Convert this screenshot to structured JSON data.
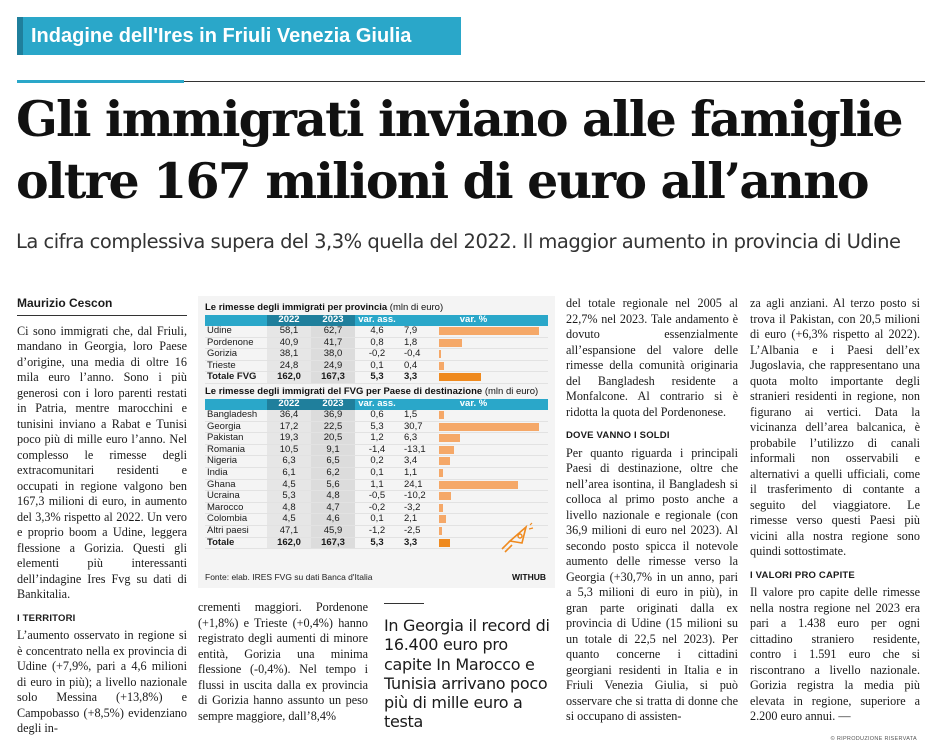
{
  "kicker": "Indagine dell'Ires in Friuli Venezia Giulia",
  "headline": {
    "line1": "Gli immigrati inviano alle famiglie",
    "line2": "oltre 167 milioni di euro all’anno"
  },
  "subtitle": "La cifra complessiva supera del 3,3% quella del 2022. Il maggior aumento in provincia di Udine",
  "byline": "Maurizio Cescon",
  "col1": {
    "p1": "Ci sono immigrati che, dal Friuli, mandano in Georgia, loro Paese d’origine, una media di oltre 16 mila euro l’anno. Sono i più generosi con i loro parenti restati in Patria, mentre marocchini e tunisini inviano a Rabat e Tunisi poco più di mille euro l’anno. Nel complesso le rimesse degli extracomunitari residenti e occupati in regione valgono ben 167,3 milioni di euro, in aumento del 3,3% rispetto al 2022. Un vero e proprio boom a Udine, leggera flessione a Gorizia. Questi gli elementi più interessanti dell’indagine Ires Fvg su dati di Bankitalia.",
    "section": "I TERRITORI",
    "p2": "L’aumento osservato in regione si è concentrato nella ex provincia di Udine (+7,9%, pari a 4,6 milioni di euro in più); a livello nazionale solo Messina (+13,8%) e Campobasso (+8,5%) evidenziano degli in-"
  },
  "col2_text": "crementi maggiori. Pordenone (+1,8%) e Trieste (+0,4%) hanno registrato degli aumenti di minore entità, Gorizia una minima flessione (-0,4%). Nel tempo i flussi in uscita dalla ex provincia di Gorizia hanno assunto un peso sempre maggiore, dall’8,4%",
  "quote": "In Georgia il record di 16.400 euro pro capite In Marocco e Tunisia arrivano poco più di mille euro a testa",
  "col3": {
    "p1": "del totale regionale nel 2005 al 22,7% nel 2023. Tale andamento è dovuto essenzialmente all’espansione del valore delle rimesse della comunità originaria del Bangladesh residente a Monfalcone. Al contrario si è ridotta la quota del Pordenonese.",
    "section": "DOVE VANNO I SOLDI",
    "p2": "Per quanto riguarda i principali Paesi di destinazione, oltre che nell’area isontina, il Bangladesh si colloca al primo posto anche a livello nazionale e regionale (con 36,9 milioni di euro nel 2023). Al secondo posto spicca il notevole aumento delle rimesse verso la Georgia (+30,7% in un anno, pari a 5,3 milioni di euro in più), in gran parte originati dalla ex provincia di Udine (15 milioni su un totale di 22,5 nel 2023). Per quanto concerne i cittadini georgiani residenti in Italia e in Friuli Venezia Giulia, si può osservare che si tratta di donne che si occupano di assisten-"
  },
  "col4": {
    "p1": "za agli anziani. Al terzo posto si trova il Pakistan, con 20,5 milioni di euro (+6,3% rispetto al 2022). L’Albania e i Paesi dell’ex Jugoslavia, che rappresentano una quota molto importante degli stranieri residenti in regione, non figurano ai vertici. Data la vicinanza dell’area balcanica, è probabile l’utilizzo di canali informali non osservabili e alternativi a quelli ufficiali, come il trasferimento di contante a seguito del viaggiatore. Le rimesse verso questi Paesi più vicini alla nostra regione sono quindi sottostimate.",
    "section": "I VALORI PRO CAPITE",
    "p2": "Il valore pro capite delle rimesse nella nostra regione nel 2023 era pari a 1.438 euro per ogni cittadino straniero residente, contro i 1.591 euro che si riscontrano a livello nazionale. Gorizia registra la media più elevata in regione, superiore a 2.200 euro annui. —"
  },
  "table_prov": {
    "title": "Le rimesse degli immigrati per provincia",
    "unit": "(mln di euro)",
    "headers": [
      "",
      "2022",
      "2023",
      "var. ass.",
      "var. %"
    ],
    "rows": [
      {
        "label": "Udine",
        "y2022": "58,1",
        "y2023": "62,7",
        "abs": "4,6",
        "pct": "7,9",
        "pct_value": 7.9
      },
      {
        "label": "Pordenone",
        "y2022": "40,9",
        "y2023": "41,7",
        "abs": "0,8",
        "pct": "1,8",
        "pct_value": 1.8
      },
      {
        "label": "Gorizia",
        "y2022": "38,1",
        "y2023": "38,0",
        "abs": "-0,2",
        "pct": "-0,4",
        "pct_value": -0.4
      },
      {
        "label": "Trieste",
        "y2022": "24,8",
        "y2023": "24,9",
        "abs": "0,1",
        "pct": "0,4",
        "pct_value": 0.4
      }
    ],
    "total": {
      "label": "Totale FVG",
      "y2022": "162,0",
      "y2023": "167,3",
      "abs": "5,3",
      "pct": "3,3",
      "pct_value": 3.3
    }
  },
  "table_country": {
    "title": "Le rimesse degli immigrati del FVG per Paese di destinazione",
    "unit": "(mln di euro)",
    "headers": [
      "",
      "2022",
      "2023",
      "var. ass.",
      "var. %"
    ],
    "rows": [
      {
        "label": "Bangladesh",
        "y2022": "36,4",
        "y2023": "36,9",
        "abs": "0,6",
        "pct": "1,5",
        "pct_value": 1.5
      },
      {
        "label": "Georgia",
        "y2022": "17,2",
        "y2023": "22,5",
        "abs": "5,3",
        "pct": "30,7",
        "pct_value": 30.7
      },
      {
        "label": "Pakistan",
        "y2022": "19,3",
        "y2023": "20,5",
        "abs": "1,2",
        "pct": "6,3",
        "pct_value": 6.3
      },
      {
        "label": "Romania",
        "y2022": "10,5",
        "y2023": "9,1",
        "abs": "-1,4",
        "pct": "-13,1",
        "pct_value": -13.1
      },
      {
        "label": "Nigeria",
        "y2022": "6,3",
        "y2023": "6,5",
        "abs": "0,2",
        "pct": "3,4",
        "pct_value": 3.4
      },
      {
        "label": "India",
        "y2022": "6,1",
        "y2023": "6,2",
        "abs": "0,1",
        "pct": "1,1",
        "pct_value": 1.1
      },
      {
        "label": "Ghana",
        "y2022": "4,5",
        "y2023": "5,6",
        "abs": "1,1",
        "pct": "24,1",
        "pct_value": 24.1
      },
      {
        "label": "Ucraina",
        "y2022": "5,3",
        "y2023": "4,8",
        "abs": "-0,5",
        "pct": "-10,2",
        "pct_value": -10.2
      },
      {
        "label": "Marocco",
        "y2022": "4,8",
        "y2023": "4,7",
        "abs": "-0,2",
        "pct": "-3,2",
        "pct_value": -3.2
      },
      {
        "label": "Colombia",
        "y2022": "4,5",
        "y2023": "4,6",
        "abs": "0,1",
        "pct": "2,1",
        "pct_value": 2.1
      },
      {
        "label": "Altri paesi",
        "y2022": "47,1",
        "y2023": "45,9",
        "abs": "-1,2",
        "pct": "-2,5",
        "pct_value": -2.5
      }
    ],
    "total": {
      "label": "Totale",
      "y2022": "162,0",
      "y2023": "167,3",
      "abs": "5,3",
      "pct": "3,3",
      "pct_value": 3.3
    }
  },
  "source": "Fonte: elab. IRES FVG su dati Banca d'Italia",
  "brand": "WITHUB",
  "copyright": "© RIPRODUZIONE RISERVATA",
  "colors": {
    "accent": "#2aa7c9",
    "accent_dark": "#1f7f9c",
    "bar": "#f5a868",
    "bar_total": "#ef8a1f"
  }
}
